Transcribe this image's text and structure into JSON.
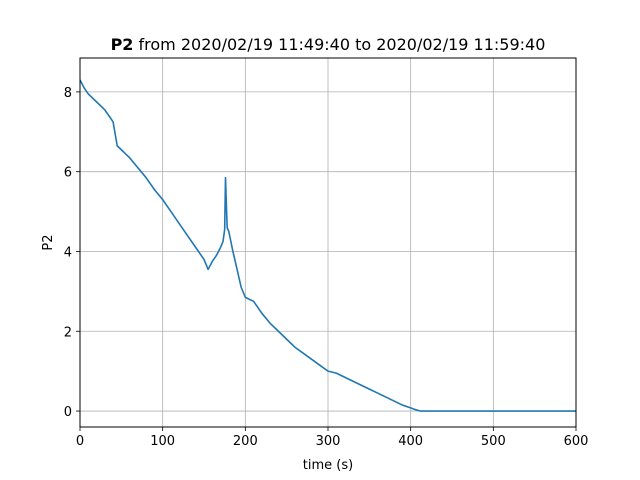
{
  "chart_data": {
    "type": "line",
    "title": {
      "bold": "P2",
      "rest": " from 2020/02/19 11:49:40 to 2020/02/19 11:59:40"
    },
    "xlabel": "time (s)",
    "ylabel": "P2",
    "xlim": [
      0,
      600
    ],
    "ylim": [
      -0.4,
      8.85
    ],
    "xticks": [
      0,
      100,
      200,
      300,
      400,
      500,
      600
    ],
    "yticks": [
      0,
      2,
      4,
      6,
      8
    ],
    "grid": true,
    "series": [
      {
        "color": "#1f77b4",
        "x": [
          0,
          5,
          10,
          20,
          30,
          40,
          45,
          50,
          60,
          70,
          80,
          90,
          100,
          110,
          120,
          130,
          140,
          150,
          155,
          160,
          165,
          170,
          173,
          175,
          176,
          178,
          180,
          182,
          185,
          190,
          195,
          200,
          210,
          220,
          230,
          240,
          250,
          260,
          270,
          280,
          290,
          300,
          310,
          320,
          330,
          340,
          350,
          360,
          370,
          380,
          390,
          400,
          405,
          410,
          412,
          420,
          500,
          600
        ],
        "y": [
          8.3,
          8.1,
          7.95,
          7.75,
          7.55,
          7.25,
          6.65,
          6.55,
          6.35,
          6.1,
          5.85,
          5.55,
          5.3,
          5.0,
          4.7,
          4.4,
          4.1,
          3.8,
          3.55,
          3.75,
          3.9,
          4.1,
          4.25,
          4.55,
          5.85,
          4.6,
          4.5,
          4.3,
          4.0,
          3.55,
          3.1,
          2.85,
          2.75,
          2.45,
          2.2,
          2.0,
          1.8,
          1.6,
          1.45,
          1.3,
          1.15,
          1.0,
          0.95,
          0.85,
          0.75,
          0.65,
          0.55,
          0.45,
          0.35,
          0.25,
          0.15,
          0.08,
          0.04,
          0.01,
          0.0,
          0.0,
          0.0,
          0.0
        ]
      }
    ]
  }
}
